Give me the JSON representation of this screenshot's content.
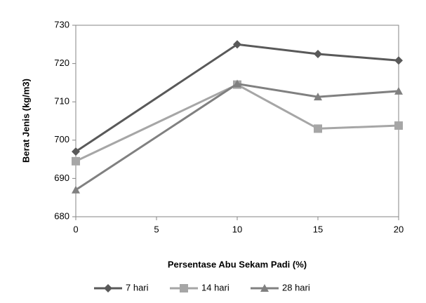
{
  "chart_data": {
    "type": "line",
    "x_label": "Persentase Abu Sekam Padi (%)",
    "y_label": "Berat Jenis (kg/m3)",
    "xlim": [
      0,
      20
    ],
    "xticks": [
      0,
      5,
      10,
      15,
      20
    ],
    "ylim": [
      680,
      730
    ],
    "yticks": [
      680,
      690,
      700,
      710,
      720,
      730
    ],
    "x": [
      0,
      10,
      15,
      20
    ],
    "legend": "bottom",
    "series": [
      {
        "name": "7 hari",
        "color": "#595959",
        "marker": "diamond",
        "values": [
          697,
          725,
          722.5,
          720.8
        ]
      },
      {
        "name": "14 hari",
        "color": "#a6a6a6",
        "marker": "square",
        "values": [
          694.5,
          714.5,
          703,
          703.8
        ]
      },
      {
        "name": "28 hari",
        "color": "#808080",
        "marker": "triangle",
        "values": [
          687,
          714.7,
          711.3,
          712.8
        ]
      }
    ]
  }
}
